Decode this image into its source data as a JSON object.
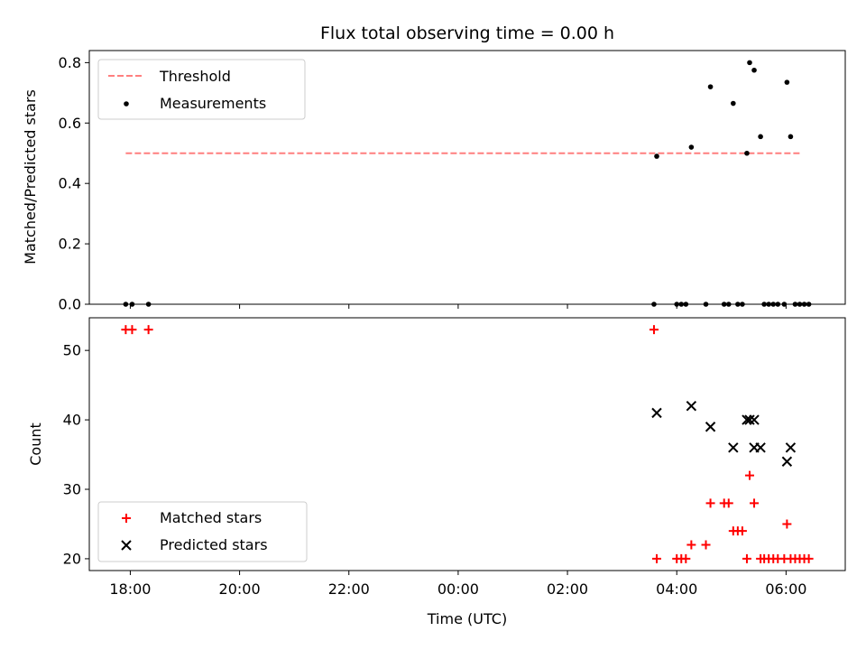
{
  "chart_data": [
    {
      "type": "scatter",
      "title": "Flux total observing time = 0.00 h",
      "xlabel": "",
      "ylabel": "Matched/Predicted stars",
      "ylim": [
        0,
        0.84
      ],
      "yticks": [
        "0.0",
        "0.2",
        "0.4",
        "0.6",
        "0.8"
      ],
      "ytick_values": [
        0,
        0.2,
        0.4,
        0.6,
        0.8
      ],
      "legend_position": "top-left",
      "threshold": {
        "name": "Threshold",
        "value": 0.5,
        "x_start": "17:55",
        "x_end": "06:15",
        "color": "#ff7f7f"
      },
      "series": [
        {
          "name": "Measurements",
          "color": "#000000",
          "points": [
            [
              "17:55",
              0.0
            ],
            [
              "18:02",
              0.0
            ],
            [
              "18:20",
              0.0
            ],
            [
              "03:35",
              0.0
            ],
            [
              "03:38",
              0.49
            ],
            [
              "04:00",
              0.0
            ],
            [
              "04:05",
              0.0
            ],
            [
              "04:10",
              0.0
            ],
            [
              "04:16",
              0.52
            ],
            [
              "04:32",
              0.0
            ],
            [
              "04:37",
              0.72
            ],
            [
              "04:52",
              0.0
            ],
            [
              "04:57",
              0.0
            ],
            [
              "05:02",
              0.665
            ],
            [
              "05:07",
              0.0
            ],
            [
              "05:12",
              0.0
            ],
            [
              "05:17",
              0.5
            ],
            [
              "05:20",
              0.8
            ],
            [
              "05:25",
              0.775
            ],
            [
              "05:32",
              0.555
            ],
            [
              "05:36",
              0.0
            ],
            [
              "05:41",
              0.0
            ],
            [
              "05:46",
              0.0
            ],
            [
              "05:51",
              0.0
            ],
            [
              "05:58",
              0.0
            ],
            [
              "06:01",
              0.735
            ],
            [
              "06:05",
              0.555
            ],
            [
              "06:10",
              0.0
            ],
            [
              "06:15",
              0.0
            ],
            [
              "06:20",
              0.0
            ],
            [
              "06:25",
              0.0
            ]
          ]
        }
      ]
    },
    {
      "type": "scatter",
      "title": "",
      "xlabel": "Time (UTC)",
      "ylabel": "Count",
      "ylim": [
        18.3,
        54.7
      ],
      "yticks": [
        "20",
        "30",
        "40",
        "50"
      ],
      "ytick_values": [
        20,
        30,
        40,
        50
      ],
      "xlim": [
        "17:15",
        "07:05"
      ],
      "xticks": [
        "18:00",
        "20:00",
        "22:00",
        "00:00",
        "02:00",
        "04:00",
        "06:00"
      ],
      "legend_position": "bottom-left",
      "series": [
        {
          "name": "Matched stars",
          "marker": "+",
          "color": "#ff0000",
          "points": [
            [
              "17:55",
              53
            ],
            [
              "18:02",
              53
            ],
            [
              "18:20",
              53
            ],
            [
              "03:35",
              53
            ],
            [
              "03:38",
              20
            ],
            [
              "04:00",
              20
            ],
            [
              "04:05",
              20
            ],
            [
              "04:10",
              20
            ],
            [
              "04:16",
              22
            ],
            [
              "04:32",
              22
            ],
            [
              "04:37",
              28
            ],
            [
              "04:52",
              28
            ],
            [
              "04:57",
              28
            ],
            [
              "05:02",
              24
            ],
            [
              "05:07",
              24
            ],
            [
              "05:12",
              24
            ],
            [
              "05:17",
              20
            ],
            [
              "05:20",
              32
            ],
            [
              "05:25",
              28
            ],
            [
              "05:32",
              20
            ],
            [
              "05:36",
              20
            ],
            [
              "05:41",
              20
            ],
            [
              "05:46",
              20
            ],
            [
              "05:51",
              20
            ],
            [
              "05:58",
              20
            ],
            [
              "06:01",
              25
            ],
            [
              "06:05",
              20
            ],
            [
              "06:10",
              20
            ],
            [
              "06:15",
              20
            ],
            [
              "06:20",
              20
            ],
            [
              "06:25",
              20
            ]
          ]
        },
        {
          "name": "Predicted stars",
          "marker": "x",
          "color": "#000000",
          "points": [
            [
              "03:38",
              41
            ],
            [
              "04:16",
              42
            ],
            [
              "04:37",
              39
            ],
            [
              "05:02",
              36
            ],
            [
              "05:17",
              40
            ],
            [
              "05:20",
              40
            ],
            [
              "05:25",
              40
            ],
            [
              "05:25",
              36
            ],
            [
              "05:32",
              36
            ],
            [
              "06:01",
              34
            ],
            [
              "06:05",
              36
            ]
          ]
        }
      ]
    }
  ]
}
